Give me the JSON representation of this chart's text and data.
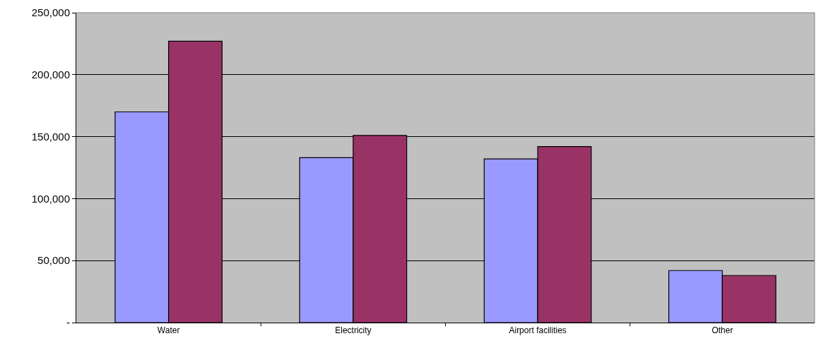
{
  "chart_data": {
    "type": "bar",
    "categories": [
      "Water",
      "Electricity",
      "Airport facilities",
      "Other"
    ],
    "series": [
      {
        "color": "#9999ff",
        "values": [
          170000,
          133000,
          132000,
          42000
        ]
      },
      {
        "color": "#993366",
        "values": [
          227000,
          151000,
          142000,
          38000
        ]
      }
    ],
    "ylim": [
      0,
      250000
    ],
    "yticks": [
      {
        "value": 0,
        "label": "-"
      },
      {
        "value": 50000,
        "label": "50,000"
      },
      {
        "value": 100000,
        "label": "100,000"
      },
      {
        "value": 150000,
        "label": "150,000"
      },
      {
        "value": 200000,
        "label": "200,000"
      },
      {
        "value": 250000,
        "label": "250,000"
      }
    ],
    "grid": "y"
  }
}
